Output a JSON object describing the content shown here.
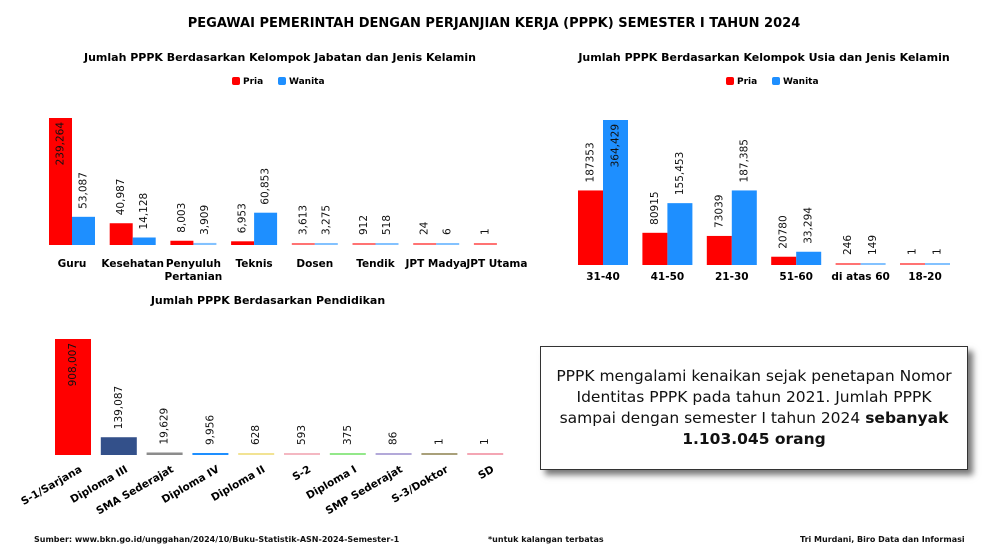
{
  "title": "PEGAWAI PEMERINTAH DENGAN PERJANJIAN KERJA (PPPK) SEMESTER I TAHUN 2024",
  "chart_data": [
    {
      "type": "bar",
      "title": "Jumlah PPPK Berdasarkan Kelompok Jabatan dan Jenis Kelamin",
      "categories": [
        "Guru",
        "Kesehatan",
        "Penyuluh Pertanian",
        "Teknis",
        "Dosen",
        "Tendik",
        "JPT Madya",
        "JPT Utama"
      ],
      "series": [
        {
          "name": "Pria",
          "color": "#ff0000",
          "values": [
            239264,
            40987,
            8003,
            6953,
            3613,
            912,
            24,
            1
          ],
          "labels": [
            "239,264",
            "40,987",
            "8,003",
            "6,953",
            "3,613",
            "912",
            "24",
            "1"
          ]
        },
        {
          "name": "Wanita",
          "color": "#1e8fff",
          "values": [
            53087,
            14128,
            3909,
            60853,
            3275,
            518,
            6,
            null
          ],
          "labels": [
            "53,087",
            "14,128",
            "3,909",
            "60,853",
            "3,275",
            "518",
            "6",
            ""
          ]
        }
      ],
      "legend": "top-center"
    },
    {
      "type": "bar",
      "title": "Jumlah PPPK Berdasarkan Kelompok Usia dan Jenis Kelamin",
      "categories": [
        "31-40",
        "41-50",
        "21-30",
        "51-60",
        "di atas 60",
        "18-20"
      ],
      "series": [
        {
          "name": "Pria",
          "color": "#ff0000",
          "values": [
            187353,
            80915,
            73039,
            20780,
            246,
            1
          ],
          "labels": [
            "187353",
            "80915",
            "73039",
            "20780",
            "246",
            "1"
          ]
        },
        {
          "name": "Wanita",
          "color": "#1e8fff",
          "values": [
            364429,
            155453,
            187385,
            33294,
            149,
            1
          ],
          "labels": [
            "364,429",
            "155,453",
            "187,385",
            "33,294",
            "149",
            "1"
          ]
        }
      ],
      "legend": "top-center"
    },
    {
      "type": "bar",
      "title": "Jumlah PPPK Berdasarkan Pendidikan",
      "categories": [
        "S-1/Sarjana",
        "Diploma III",
        "SMA Sederajat",
        "Diploma IV",
        "Diploma II",
        "S-2",
        "Diploma I",
        "SMP Sederajat",
        "S-3/Doktor",
        "SD"
      ],
      "values": [
        908007,
        139087,
        19629,
        9956,
        628,
        593,
        375,
        86,
        1,
        1
      ],
      "labels": [
        "908,007",
        "139,087",
        "19,629",
        "9,956",
        "628",
        "593",
        "375",
        "86",
        "1",
        "1"
      ],
      "colors": [
        "#ff0000",
        "#33508a",
        "#8c8c8c",
        "#1e8fff",
        "#f2e394",
        "#f4b8c2",
        "#93e88a",
        "#b3a9d9",
        "#a9a07a",
        "#f4a6b4"
      ]
    }
  ],
  "note": {
    "text": "PPPK mengalami kenaikan sejak penetapan Nomor Identitas PPPK pada  tahun 2021. Jumlah PPPK sampai dengan semester I tahun 2024 ",
    "bold": "sebanyak 1.103.045 orang"
  },
  "footer": {
    "source": "Sumber: www.bkn.go.id/unggahan/2024/10/Buku-Statistik-ASN-2024-Semester-1",
    "confidential": "*untuk kalangan terbatas",
    "author": "Tri Murdani, Biro Data dan Informasi"
  }
}
